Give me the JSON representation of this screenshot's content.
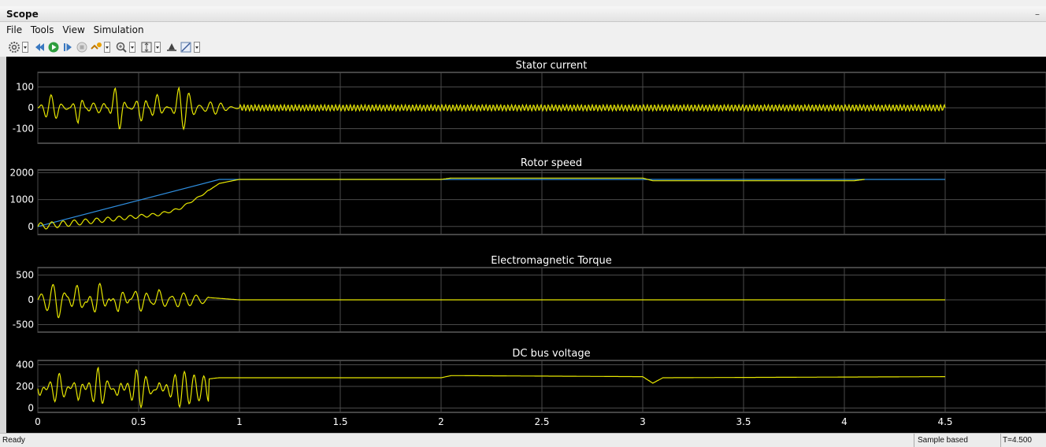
{
  "window": {
    "title": "Scope"
  },
  "menu": [
    "File",
    "Tools",
    "View",
    "Simulation"
  ],
  "toolbar": {
    "icons": [
      "gear-icon",
      "step-back-icon",
      "run-icon",
      "step-forward-icon",
      "stop-icon",
      "highlight-icon",
      "zoom-in-icon",
      "autoscale-icon",
      "axes-scale-icon",
      "style-icon",
      "measure-icon"
    ]
  },
  "status": {
    "left": "Ready",
    "mid": "Sample based",
    "right": "T=4.500"
  },
  "colors": {
    "background": "#000000",
    "grid": "#4a4a4a",
    "series_yellow": "#e6e600",
    "series_blue": "#2f8fe0",
    "text": "#ffffff"
  },
  "chart_data": [
    {
      "type": "line",
      "title": "Stator current",
      "xlim": [
        0,
        5
      ],
      "ylim": [
        -170,
        170
      ],
      "yticks": [
        100,
        0,
        -100
      ],
      "ytick_labels": [
        "100",
        "0",
        "-100"
      ],
      "series": [
        {
          "color": "#e6e600",
          "x": [
            0,
            0.1,
            0.2,
            0.3,
            0.4,
            0.5,
            0.6,
            0.7,
            0.8,
            0.9,
            1.0,
            1.5,
            2.0,
            2.5,
            3.0,
            3.5,
            4.0,
            4.5
          ],
          "y": [
            0,
            110,
            -80,
            120,
            -140,
            130,
            -120,
            115,
            60,
            25,
            15,
            12,
            12,
            12,
            12,
            12,
            12,
            12
          ]
        }
      ]
    },
    {
      "type": "line",
      "title": "Rotor speed",
      "xlim": [
        0,
        5
      ],
      "ylim": [
        -300,
        2100
      ],
      "yticks": [
        2000,
        1000,
        0
      ],
      "ytick_labels": [
        "2000",
        "1000",
        "0"
      ],
      "series": [
        {
          "color": "#2f8fe0",
          "x": [
            0,
            0.9,
            1.0,
            2.0,
            3.0,
            3.05,
            4.1,
            4.5
          ],
          "y": [
            0,
            1750,
            1750,
            1750,
            1750,
            1750,
            1750,
            1750
          ]
        },
        {
          "color": "#e6e600",
          "x": [
            0,
            0.2,
            0.4,
            0.6,
            0.7,
            0.8,
            0.9,
            1.0,
            2.0,
            2.05,
            3.0,
            3.05,
            4.05,
            4.1
          ],
          "y": [
            0,
            150,
            300,
            450,
            650,
            1100,
            1600,
            1750,
            1750,
            1800,
            1800,
            1700,
            1700,
            1750
          ]
        }
      ]
    },
    {
      "type": "line",
      "title": "Electromagnetic Torque",
      "xlim": [
        0,
        5
      ],
      "ylim": [
        -650,
        650
      ],
      "yticks": [
        500,
        0,
        -500
      ],
      "ytick_labels": [
        "500",
        "0",
        "-500"
      ],
      "series": [
        {
          "color": "#e6e600",
          "x": [
            0,
            0.1,
            0.2,
            0.3,
            0.4,
            0.5,
            0.6,
            0.7,
            0.8,
            0.9,
            1.0,
            4.5
          ],
          "y": [
            0,
            350,
            -350,
            450,
            -300,
            250,
            -150,
            100,
            60,
            30,
            0,
            0
          ]
        }
      ]
    },
    {
      "type": "line",
      "title": "DC bus voltage",
      "xlim": [
        0,
        5
      ],
      "ylim": [
        -40,
        440
      ],
      "yticks": [
        400,
        200,
        0
      ],
      "ytick_labels": [
        "400",
        "200",
        "0"
      ],
      "xticks": [
        0,
        0.5,
        1,
        1.5,
        2,
        2.5,
        3,
        3.5,
        4,
        4.5
      ],
      "xtick_labels": [
        "0",
        "0.5",
        "1",
        "1.5",
        "2",
        "2.5",
        "3",
        "3.5",
        "4",
        "4.5"
      ],
      "series": [
        {
          "color": "#e6e600",
          "x": [
            0,
            0.1,
            0.2,
            0.3,
            0.4,
            0.5,
            0.6,
            0.7,
            0.8,
            0.9,
            1.0,
            2.0,
            2.05,
            3.0,
            3.05,
            3.1,
            4.5
          ],
          "y": [
            50,
            300,
            30,
            340,
            60,
            350,
            90,
            320,
            260,
            280,
            280,
            280,
            300,
            290,
            230,
            280,
            290
          ]
        }
      ]
    }
  ]
}
